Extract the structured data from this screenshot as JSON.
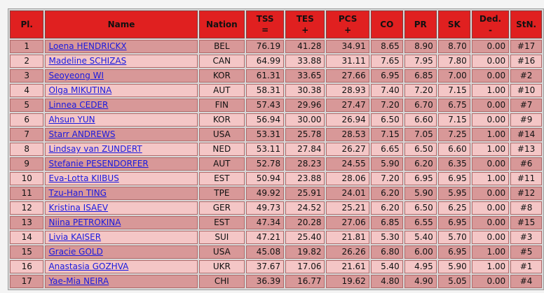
{
  "headers": {
    "pl": "Pl.",
    "name": "Name",
    "nation": "Nation",
    "tss": "TSS",
    "tss_sub": "=",
    "tes": "TES",
    "tes_sub": "+",
    "pcs": "PCS",
    "pcs_sub": "+",
    "co": "CO",
    "pr": "PR",
    "sk": "SK",
    "ded": "Ded.",
    "ded_sub": "-",
    "stn": "StN."
  },
  "rows": [
    {
      "pl": "1",
      "name": "Loena HENDRICKX",
      "nation": "BEL",
      "tss": "76.19",
      "tes": "41.28",
      "pcs": "34.91",
      "co": "8.65",
      "pr": "8.90",
      "sk": "8.70",
      "ded": "0.00",
      "stn": "#17"
    },
    {
      "pl": "2",
      "name": "Madeline SCHIZAS",
      "nation": "CAN",
      "tss": "64.99",
      "tes": "33.88",
      "pcs": "31.11",
      "co": "7.65",
      "pr": "7.95",
      "sk": "7.80",
      "ded": "0.00",
      "stn": "#16"
    },
    {
      "pl": "3",
      "name": "Seoyeong WI",
      "nation": "KOR",
      "tss": "61.31",
      "tes": "33.65",
      "pcs": "27.66",
      "co": "6.95",
      "pr": "6.85",
      "sk": "7.00",
      "ded": "0.00",
      "stn": "#2"
    },
    {
      "pl": "4",
      "name": "Olga MIKUTINA",
      "nation": "AUT",
      "tss": "58.31",
      "tes": "30.38",
      "pcs": "28.93",
      "co": "7.40",
      "pr": "7.20",
      "sk": "7.15",
      "ded": "1.00",
      "stn": "#10"
    },
    {
      "pl": "5",
      "name": "Linnea CEDER",
      "nation": "FIN",
      "tss": "57.43",
      "tes": "29.96",
      "pcs": "27.47",
      "co": "7.20",
      "pr": "6.70",
      "sk": "6.75",
      "ded": "0.00",
      "stn": "#7"
    },
    {
      "pl": "6",
      "name": "Ahsun YUN",
      "nation": "KOR",
      "tss": "56.94",
      "tes": "30.00",
      "pcs": "26.94",
      "co": "6.50",
      "pr": "6.60",
      "sk": "7.15",
      "ded": "0.00",
      "stn": "#9"
    },
    {
      "pl": "7",
      "name": "Starr ANDREWS",
      "nation": "USA",
      "tss": "53.31",
      "tes": "25.78",
      "pcs": "28.53",
      "co": "7.15",
      "pr": "7.05",
      "sk": "7.25",
      "ded": "1.00",
      "stn": "#14"
    },
    {
      "pl": "8",
      "name": "Lindsay van ZUNDERT",
      "nation": "NED",
      "tss": "53.11",
      "tes": "27.84",
      "pcs": "26.27",
      "co": "6.65",
      "pr": "6.50",
      "sk": "6.60",
      "ded": "1.00",
      "stn": "#13"
    },
    {
      "pl": "9",
      "name": "Stefanie PESENDORFER",
      "nation": "AUT",
      "tss": "52.78",
      "tes": "28.23",
      "pcs": "24.55",
      "co": "5.90",
      "pr": "6.20",
      "sk": "6.35",
      "ded": "0.00",
      "stn": "#6"
    },
    {
      "pl": "10",
      "name": "Eva-Lotta KIIBUS",
      "nation": "EST",
      "tss": "50.94",
      "tes": "23.88",
      "pcs": "28.06",
      "co": "7.20",
      "pr": "6.95",
      "sk": "6.95",
      "ded": "1.00",
      "stn": "#11"
    },
    {
      "pl": "11",
      "name": "Tzu-Han TING",
      "nation": "TPE",
      "tss": "49.92",
      "tes": "25.91",
      "pcs": "24.01",
      "co": "6.20",
      "pr": "5.90",
      "sk": "5.95",
      "ded": "0.00",
      "stn": "#12"
    },
    {
      "pl": "12",
      "name": "Kristina ISAEV",
      "nation": "GER",
      "tss": "49.73",
      "tes": "24.52",
      "pcs": "25.21",
      "co": "6.20",
      "pr": "6.50",
      "sk": "6.25",
      "ded": "0.00",
      "stn": "#8"
    },
    {
      "pl": "13",
      "name": "Niina PETROKINA",
      "nation": "EST",
      "tss": "47.34",
      "tes": "20.28",
      "pcs": "27.06",
      "co": "6.85",
      "pr": "6.55",
      "sk": "6.95",
      "ded": "0.00",
      "stn": "#15"
    },
    {
      "pl": "14",
      "name": "Livia KAISER",
      "nation": "SUI",
      "tss": "47.21",
      "tes": "25.40",
      "pcs": "21.81",
      "co": "5.30",
      "pr": "5.40",
      "sk": "5.70",
      "ded": "0.00",
      "stn": "#3"
    },
    {
      "pl": "15",
      "name": "Gracie GOLD",
      "nation": "USA",
      "tss": "45.08",
      "tes": "19.82",
      "pcs": "26.26",
      "co": "6.80",
      "pr": "6.00",
      "sk": "6.95",
      "ded": "1.00",
      "stn": "#5"
    },
    {
      "pl": "16",
      "name": "Anastasia GOZHVA",
      "nation": "UKR",
      "tss": "37.67",
      "tes": "17.06",
      "pcs": "21.61",
      "co": "5.40",
      "pr": "4.95",
      "sk": "5.90",
      "ded": "1.00",
      "stn": "#1"
    },
    {
      "pl": "17",
      "name": "Yae-Mia NEIRA",
      "nation": "CHI",
      "tss": "36.39",
      "tes": "16.77",
      "pcs": "19.62",
      "co": "4.80",
      "pr": "4.90",
      "sk": "5.05",
      "ded": "0.00",
      "stn": "#4"
    }
  ],
  "colors": {
    "header_bg": "#e02020",
    "row_odd": "#d89898",
    "row_even": "#f4c6c6",
    "link": "#1a1adf"
  }
}
